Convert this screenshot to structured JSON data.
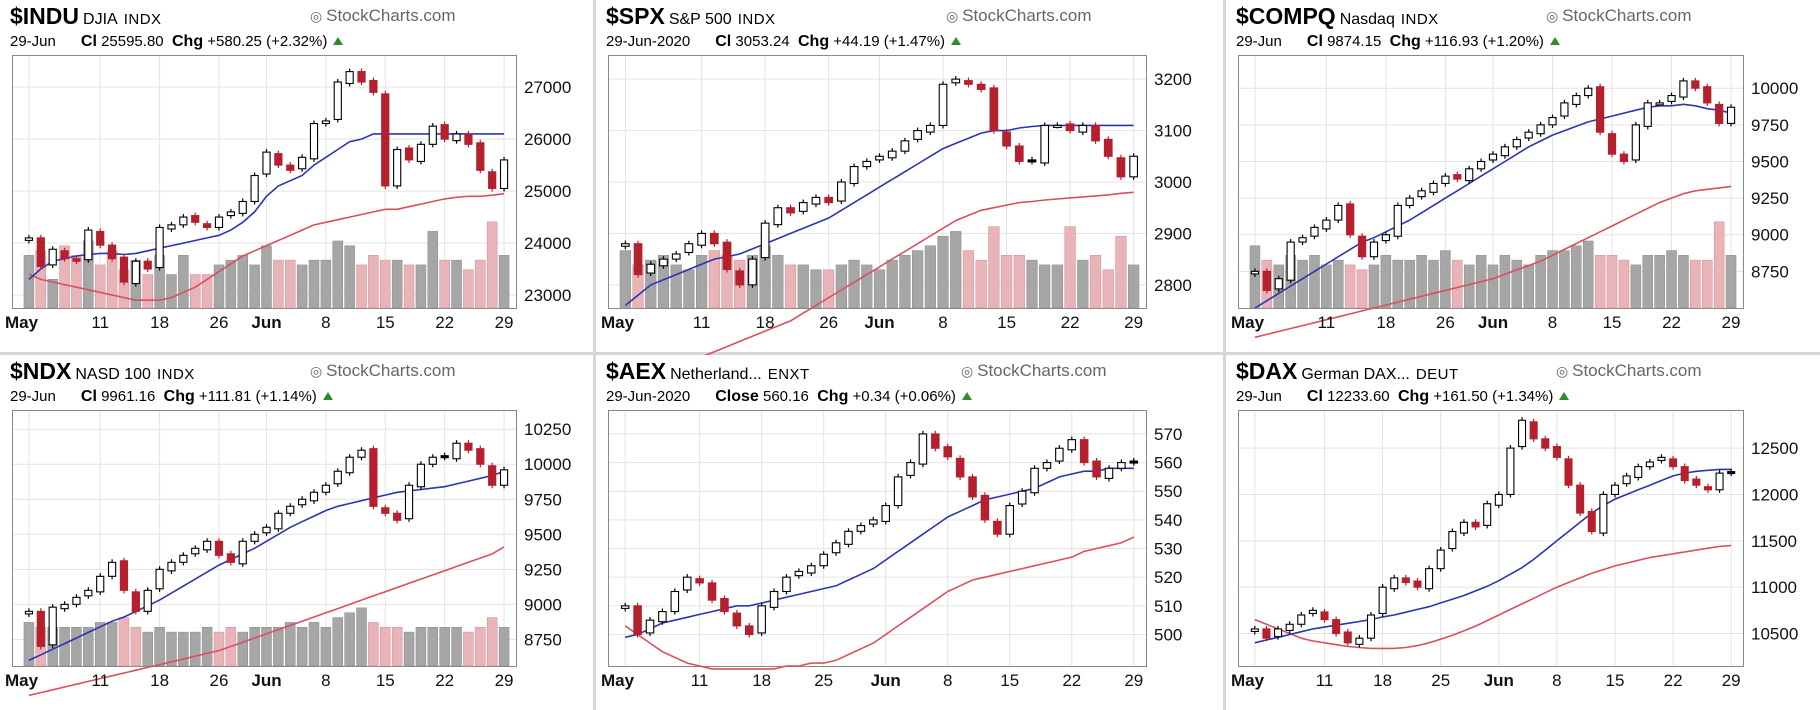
{
  "colors": {
    "up": "#ffffff",
    "down": "#b5202e",
    "black": "#000000",
    "ma_short": "#2b35b0",
    "ma_long": "#d8505e",
    "vol_grey": "#a6a6a6",
    "vol_pink": "#e8b4b8",
    "grid": "#e3e3e3"
  },
  "icons": {
    "watermark": "copyright-icon",
    "change": "up-triangle-icon"
  },
  "chart_data": [
    {
      "type": "candlestick",
      "symbol": "$INDU",
      "name": "DJIA",
      "exchange": "INDX",
      "watermark": "StockCharts.com",
      "date": "29-Jun",
      "close_label": "Cl",
      "close": "25595.80",
      "chg_label": "Chg",
      "chg": "+580.25 (+2.32%)",
      "yticks": [
        "27000",
        "26000",
        "25000",
        "24000",
        "23000"
      ],
      "ytick_values": [
        27000,
        26000,
        25000,
        24000,
        23000
      ],
      "ylim": [
        22750,
        27600
      ],
      "xticks": [
        "May",
        "11",
        "18",
        "26",
        "Jun",
        "8",
        "15",
        "22",
        "29"
      ],
      "xtick_days": [
        0,
        6,
        11,
        16,
        20,
        25,
        30,
        35,
        40
      ],
      "closes": [
        24100,
        23550,
        23880,
        23700,
        23650,
        24250,
        23960,
        23700,
        23250,
        23650,
        23500,
        24300,
        24350,
        24500,
        24400,
        24300,
        24500,
        24600,
        24800,
        25300,
        25750,
        25500,
        25400,
        25650,
        26300,
        26350,
        27100,
        27300,
        27100,
        26900,
        25100,
        25800,
        25600,
        25900,
        26250,
        26000,
        26100,
        25900,
        25400,
        25050,
        25600
      ],
      "ma_short": [
        23300,
        23500,
        23650,
        23700,
        23750,
        23780,
        23800,
        23800,
        23780,
        23800,
        23850,
        23900,
        23950,
        24000,
        24050,
        24100,
        24150,
        24250,
        24400,
        24600,
        24900,
        25100,
        25200,
        25300,
        25500,
        25650,
        25800,
        25950,
        26000,
        26100,
        26100,
        26100,
        26100,
        26100,
        26100,
        26100,
        26100,
        26100,
        26100,
        26100,
        26100
      ],
      "ma_long": [
        23400,
        23300,
        23250,
        23200,
        23150,
        23100,
        23050,
        23000,
        22950,
        22900,
        22900,
        22900,
        22950,
        23050,
        23150,
        23300,
        23450,
        23600,
        23750,
        23850,
        23950,
        24050,
        24150,
        24250,
        24350,
        24400,
        24450,
        24500,
        24550,
        24600,
        24650,
        24650,
        24700,
        24750,
        24800,
        24850,
        24880,
        24900,
        24900,
        24920,
        24950
      ],
      "volume": [
        0.55,
        0.6,
        0.3,
        0.65,
        0.55,
        0.7,
        0.45,
        0.6,
        0.4,
        0.5,
        0.35,
        0.55,
        0.35,
        0.55,
        0.35,
        0.35,
        0.45,
        0.5,
        0.55,
        0.45,
        0.65,
        0.5,
        0.5,
        0.45,
        0.5,
        0.5,
        0.7,
        0.65,
        0.45,
        0.55,
        0.5,
        0.5,
        0.45,
        0.45,
        0.8,
        0.5,
        0.5,
        0.4,
        0.5,
        0.9,
        0.55
      ]
    },
    {
      "type": "candlestick",
      "symbol": "$SPX",
      "name": "S&P 500",
      "exchange": "INDX",
      "watermark": "StockCharts.com",
      "date": "29-Jun-2020",
      "close_label": "Cl",
      "close": "3053.24",
      "chg_label": "Chg",
      "chg": "+44.19 (+1.47%)",
      "yticks": [
        "3200",
        "3100",
        "3000",
        "2900",
        "2800"
      ],
      "ytick_values": [
        3200,
        3100,
        3000,
        2900,
        2800
      ],
      "ylim": [
        2755,
        3245
      ],
      "xticks": [
        "May",
        "11",
        "18",
        "26",
        "Jun",
        "8",
        "15",
        "22",
        "29"
      ],
      "xtick_days": [
        0,
        6,
        11,
        16,
        20,
        25,
        30,
        35,
        40
      ],
      "closes": [
        2880,
        2820,
        2840,
        2850,
        2860,
        2880,
        2900,
        2880,
        2830,
        2800,
        2850,
        2920,
        2950,
        2940,
        2960,
        2970,
        2960,
        3000,
        3030,
        3040,
        3050,
        3060,
        3080,
        3100,
        3110,
        3190,
        3200,
        3190,
        3180,
        3100,
        3070,
        3040,
        3040,
        3110,
        3110,
        3100,
        3110,
        3080,
        3050,
        3010,
        3050
      ],
      "ma_short": [
        2760,
        2780,
        2800,
        2810,
        2820,
        2830,
        2840,
        2850,
        2855,
        2860,
        2870,
        2880,
        2890,
        2900,
        2910,
        2920,
        2930,
        2945,
        2960,
        2975,
        2990,
        3005,
        3020,
        3035,
        3050,
        3065,
        3075,
        3085,
        3095,
        3100,
        3100,
        3105,
        3108,
        3110,
        3110,
        3110,
        3110,
        3110,
        3110,
        3110,
        3110
      ],
      "ma_long": [
        2600,
        2610,
        2620,
        2630,
        2640,
        2650,
        2660,
        2670,
        2680,
        2690,
        2700,
        2710,
        2720,
        2730,
        2745,
        2760,
        2775,
        2790,
        2805,
        2820,
        2835,
        2850,
        2865,
        2880,
        2895,
        2910,
        2925,
        2935,
        2945,
        2950,
        2955,
        2960,
        2962,
        2965,
        2967,
        2969,
        2971,
        2973,
        2975,
        2978,
        2980
      ],
      "volume": [
        0.6,
        0.45,
        0.5,
        0.55,
        0.45,
        0.4,
        0.55,
        0.6,
        0.55,
        0.5,
        0.55,
        0.65,
        0.55,
        0.45,
        0.45,
        0.4,
        0.4,
        0.45,
        0.5,
        0.45,
        0.4,
        0.5,
        0.55,
        0.6,
        0.65,
        0.75,
        0.8,
        0.6,
        0.5,
        0.85,
        0.55,
        0.55,
        0.5,
        0.45,
        0.45,
        0.85,
        0.5,
        0.55,
        0.4,
        0.75,
        0.45
      ]
    },
    {
      "type": "candlestick",
      "symbol": "$COMPQ",
      "name": "Nasdaq",
      "exchange": "INDX",
      "watermark": "StockCharts.com",
      "date": "29-Jun",
      "close_label": "Cl",
      "close": "9874.15",
      "chg_label": "Chg",
      "chg": "+116.93 (+1.20%)",
      "yticks": [
        "10000",
        "9750",
        "9500",
        "9250",
        "9000",
        "8750"
      ],
      "ytick_values": [
        10000,
        9750,
        9500,
        9250,
        9000,
        8750
      ],
      "ylim": [
        8500,
        10220
      ],
      "xticks": [
        "May",
        "11",
        "18",
        "26",
        "Jun",
        "8",
        "15",
        "22",
        "29"
      ],
      "xtick_days": [
        0,
        6,
        11,
        16,
        20,
        25,
        30,
        35,
        40
      ],
      "closes": [
        8750,
        8620,
        8700,
        8950,
        8980,
        9050,
        9100,
        9200,
        9000,
        8850,
        8950,
        9000,
        9200,
        9250,
        9300,
        9350,
        9400,
        9380,
        9450,
        9500,
        9550,
        9600,
        9650,
        9700,
        9750,
        9800,
        9900,
        9950,
        10000,
        9700,
        9550,
        9500,
        9750,
        9900,
        9900,
        9950,
        10050,
        10000,
        9900,
        9760,
        9870
      ],
      "ma_short": [
        8500,
        8550,
        8600,
        8650,
        8700,
        8750,
        8800,
        8850,
        8900,
        8950,
        8980,
        9020,
        9060,
        9100,
        9150,
        9200,
        9250,
        9300,
        9350,
        9400,
        9450,
        9500,
        9550,
        9600,
        9640,
        9680,
        9710,
        9740,
        9770,
        9790,
        9810,
        9830,
        9850,
        9870,
        9880,
        9880,
        9890,
        9880,
        9860,
        9850,
        9830
      ],
      "ma_long": [
        8300,
        8320,
        8340,
        8360,
        8380,
        8400,
        8420,
        8440,
        8460,
        8480,
        8500,
        8520,
        8540,
        8560,
        8580,
        8600,
        8620,
        8640,
        8660,
        8680,
        8700,
        8730,
        8760,
        8790,
        8820,
        8860,
        8900,
        8940,
        8980,
        9020,
        9060,
        9100,
        9140,
        9180,
        9220,
        9250,
        9280,
        9300,
        9310,
        9320,
        9330
      ],
      "volume": [
        0.65,
        0.5,
        0.45,
        0.55,
        0.5,
        0.55,
        0.45,
        0.5,
        0.45,
        0.4,
        0.45,
        0.55,
        0.5,
        0.5,
        0.55,
        0.5,
        0.6,
        0.5,
        0.45,
        0.55,
        0.45,
        0.55,
        0.5,
        0.45,
        0.55,
        0.6,
        0.6,
        0.65,
        0.7,
        0.55,
        0.55,
        0.5,
        0.45,
        0.55,
        0.55,
        0.6,
        0.55,
        0.5,
        0.5,
        0.9,
        0.55
      ]
    },
    {
      "type": "candlestick",
      "symbol": "$NDX",
      "name": "NASD 100",
      "exchange": "INDX",
      "watermark": "StockCharts.com",
      "date": "29-Jun",
      "close_label": "Cl",
      "close": "9961.16",
      "chg_label": "Chg",
      "chg": "+111.81 (+1.14%)",
      "yticks": [
        "10250",
        "10000",
        "9750",
        "9500",
        "9250",
        "9000",
        "8750"
      ],
      "ytick_values": [
        10250,
        10000,
        9750,
        9500,
        9250,
        9000,
        8750
      ],
      "ylim": [
        8560,
        10380
      ],
      "xticks": [
        "May",
        "11",
        "18",
        "26",
        "Jun",
        "8",
        "15",
        "22",
        "29"
      ],
      "xtick_days": [
        0,
        6,
        11,
        16,
        20,
        25,
        30,
        35,
        40
      ],
      "closes": [
        8950,
        8700,
        8980,
        9000,
        9050,
        9100,
        9200,
        9300,
        9100,
        8950,
        9100,
        9250,
        9300,
        9350,
        9400,
        9450,
        9350,
        9300,
        9450,
        9500,
        9550,
        9650,
        9700,
        9750,
        9800,
        9850,
        9950,
        10050,
        10100,
        9700,
        9650,
        9600,
        9850,
        10000,
        10050,
        10050,
        10150,
        10100,
        10000,
        9850,
        9960
      ],
      "ma_short": [
        8600,
        8640,
        8680,
        8720,
        8760,
        8800,
        8840,
        8880,
        8910,
        8950,
        8990,
        9030,
        9080,
        9130,
        9180,
        9230,
        9280,
        9320,
        9360,
        9400,
        9450,
        9500,
        9550,
        9590,
        9630,
        9670,
        9700,
        9720,
        9740,
        9760,
        9780,
        9800,
        9810,
        9820,
        9830,
        9840,
        9860,
        9880,
        9900,
        9920,
        9950
      ],
      "ma_long": [
        8350,
        8370,
        8390,
        8410,
        8430,
        8450,
        8470,
        8490,
        8510,
        8530,
        8550,
        8570,
        8590,
        8610,
        8630,
        8650,
        8670,
        8700,
        8730,
        8760,
        8790,
        8820,
        8850,
        8880,
        8910,
        8940,
        8970,
        9000,
        9030,
        9060,
        9090,
        9120,
        9150,
        9180,
        9210,
        9240,
        9270,
        9300,
        9330,
        9360,
        9410
      ],
      "volume": [
        0.45,
        0.4,
        0.4,
        0.4,
        0.4,
        0.4,
        0.45,
        0.45,
        0.5,
        0.4,
        0.35,
        0.4,
        0.35,
        0.35,
        0.35,
        0.4,
        0.35,
        0.4,
        0.35,
        0.4,
        0.4,
        0.4,
        0.45,
        0.4,
        0.45,
        0.4,
        0.5,
        0.55,
        0.6,
        0.45,
        0.4,
        0.4,
        0.35,
        0.4,
        0.4,
        0.4,
        0.4,
        0.35,
        0.4,
        0.5,
        0.4
      ]
    },
    {
      "type": "candlestick",
      "symbol": "$AEX",
      "name": "Netherland...",
      "exchange": "ENXT",
      "watermark": "StockCharts.com",
      "date": "29-Jun-2020",
      "close_label": "Close",
      "close": "560.16",
      "chg_label": "Chg",
      "chg": "+0.34 (+0.06%)",
      "yticks": [
        "570",
        "560",
        "550",
        "540",
        "530",
        "520",
        "510",
        "500"
      ],
      "ytick_values": [
        570,
        560,
        550,
        540,
        530,
        520,
        510,
        500
      ],
      "ylim": [
        489,
        578
      ],
      "xticks": [
        "May",
        "11",
        "18",
        "25",
        "Jun",
        "8",
        "15",
        "22",
        "29"
      ],
      "xtick_days": [
        0,
        6,
        11,
        16,
        21,
        26,
        31,
        36,
        41
      ],
      "closes": [
        510,
        500,
        505,
        508,
        515,
        520,
        518,
        512,
        508,
        503,
        500,
        510,
        515,
        520,
        522,
        524,
        528,
        532,
        536,
        538,
        540,
        545,
        555,
        560,
        570,
        565,
        562,
        555,
        548,
        540,
        535,
        545,
        550,
        558,
        560,
        565,
        568,
        560,
        555,
        558,
        560,
        560
      ],
      "ma_short": [
        499,
        500,
        502,
        504,
        505,
        506,
        507,
        508,
        509,
        510,
        510,
        511,
        512,
        513,
        514,
        515,
        516,
        517,
        519,
        521,
        523,
        526,
        529,
        532,
        535,
        538,
        541,
        543,
        545,
        547,
        548,
        549,
        550,
        551,
        553,
        555,
        556,
        557,
        557,
        558,
        558,
        558
      ],
      "ma_long": [
        503,
        500,
        497,
        494,
        492,
        490,
        489,
        488,
        488,
        488,
        488,
        488,
        488,
        489,
        489,
        490,
        490,
        491,
        493,
        495,
        497,
        500,
        503,
        506,
        509,
        512,
        515,
        517,
        519,
        520,
        521,
        522,
        523,
        524,
        525,
        526,
        527,
        529,
        530,
        531,
        532,
        534
      ],
      "volume": []
    },
    {
      "type": "candlestick",
      "symbol": "$DAX",
      "name": "German DAX...",
      "exchange": "DEUT",
      "watermark": "StockCharts.com",
      "date": "29-Jun",
      "close_label": "Cl",
      "close": "12233.60",
      "chg_label": "Chg",
      "chg": "+161.50 (+1.34%)",
      "yticks": [
        "12500",
        "12000",
        "11500",
        "11000",
        "10500"
      ],
      "ytick_values": [
        12500,
        12000,
        11500,
        11000,
        10500
      ],
      "ylim": [
        10150,
        12900
      ],
      "xticks": [
        "May",
        "11",
        "18",
        "25",
        "Jun",
        "8",
        "15",
        "22",
        "29"
      ],
      "xtick_days": [
        0,
        6,
        11,
        16,
        21,
        26,
        31,
        36,
        41
      ],
      "closes": [
        10550,
        10450,
        10550,
        10600,
        10700,
        10750,
        10650,
        10500,
        10400,
        10450,
        10700,
        11000,
        11100,
        11050,
        11000,
        11200,
        11400,
        11600,
        11700,
        11650,
        11900,
        12000,
        12500,
        12800,
        12600,
        12500,
        12400,
        12100,
        11800,
        11600,
        12000,
        12100,
        12200,
        12300,
        12350,
        12400,
        12300,
        12150,
        12100,
        12050,
        12230,
        12230
      ],
      "ma_short": [
        10400,
        10430,
        10460,
        10490,
        10520,
        10550,
        10570,
        10590,
        10610,
        10630,
        10650,
        10680,
        10700,
        10730,
        10760,
        10790,
        10830,
        10870,
        10910,
        10960,
        11010,
        11070,
        11140,
        11210,
        11300,
        11400,
        11500,
        11600,
        11700,
        11800,
        11880,
        11950,
        12000,
        12050,
        12100,
        12150,
        12200,
        12230,
        12250,
        12260,
        12270,
        12270
      ],
      "ma_long": [
        10650,
        10600,
        10550,
        10500,
        10450,
        10420,
        10400,
        10380,
        10360,
        10350,
        10340,
        10340,
        10340,
        10350,
        10370,
        10400,
        10440,
        10480,
        10530,
        10580,
        10640,
        10700,
        10760,
        10820,
        10880,
        10940,
        11000,
        11050,
        11100,
        11150,
        11190,
        11230,
        11260,
        11290,
        11320,
        11340,
        11360,
        11380,
        11400,
        11420,
        11440,
        11450
      ],
      "volume": []
    }
  ]
}
